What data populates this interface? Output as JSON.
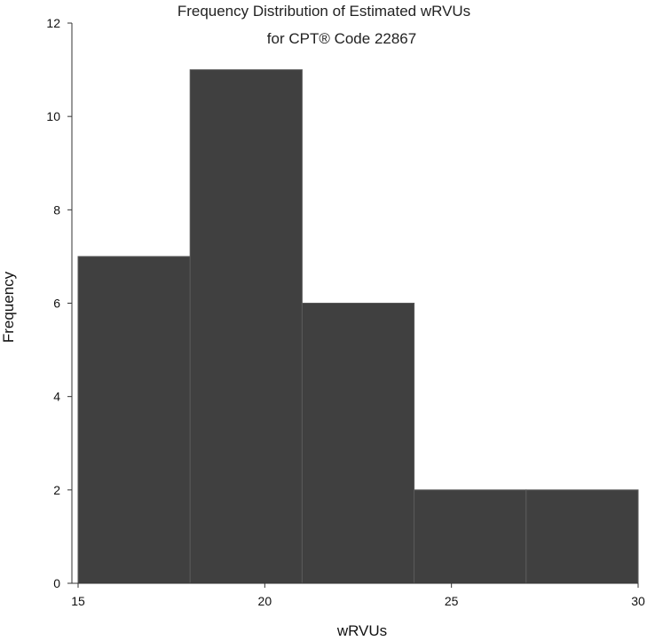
{
  "chart_data": {
    "type": "bar",
    "title_lines": [
      "Frequency Distribution of Estimated wRVUs",
      "for CPT® Code 22867"
    ],
    "xlabel": "wRVUs",
    "ylabel": "Frequency",
    "xlim": [
      15,
      30
    ],
    "ylim": [
      0,
      12
    ],
    "x_ticks": [
      15,
      20,
      25,
      30
    ],
    "y_ticks": [
      0,
      2,
      4,
      6,
      8,
      10,
      12
    ],
    "bins": [
      {
        "start": 15,
        "end": 18,
        "count": 7
      },
      {
        "start": 18,
        "end": 21,
        "count": 11
      },
      {
        "start": 21,
        "end": 24,
        "count": 6
      },
      {
        "start": 24,
        "end": 27,
        "count": 2
      },
      {
        "start": 27,
        "end": 30,
        "count": 2
      }
    ],
    "bar_color": "#404040",
    "grid": false
  }
}
